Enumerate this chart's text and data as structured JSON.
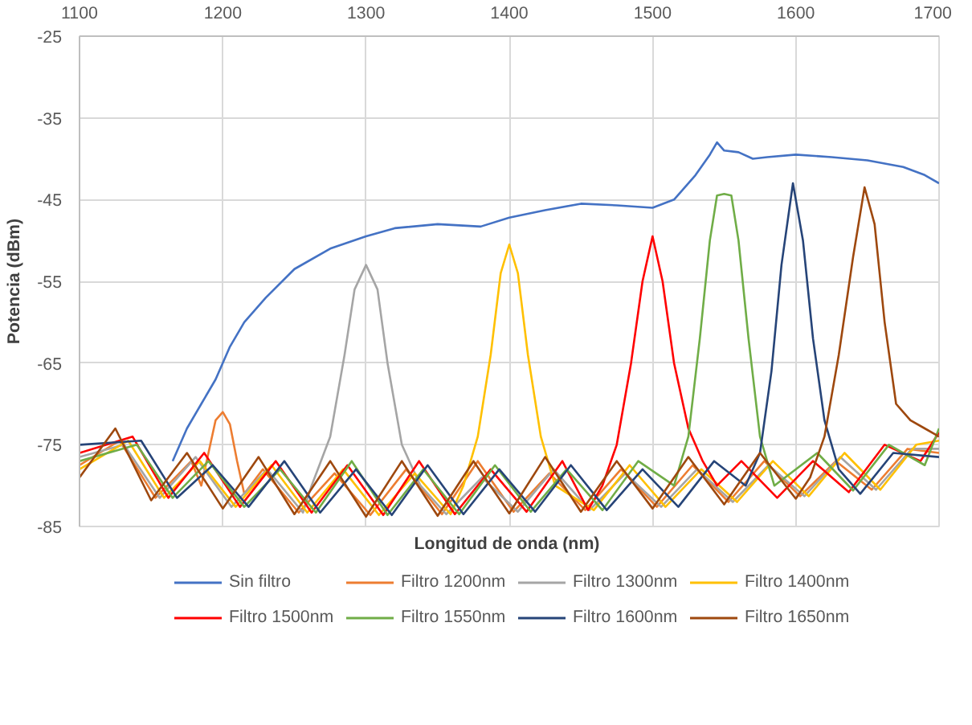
{
  "chart_data": {
    "type": "line",
    "xlabel": "Longitud  de onda (nm)",
    "ylabel": "Potencia (dBm)",
    "xlim": [
      1100,
      1700
    ],
    "xticks": [
      1100,
      1200,
      1300,
      1400,
      1500,
      1600,
      1700
    ],
    "ylim": [
      -85,
      -25
    ],
    "yticks": [
      -85,
      -75,
      -65,
      -55,
      -45,
      -35,
      -25
    ],
    "grid": true,
    "legend": "bottom",
    "marker": "none",
    "line_style": "solid",
    "series": [
      {
        "name": "Sin filtro",
        "color": "#4472c4",
        "x": [
          1165,
          1175,
          1185,
          1195,
          1205,
          1215,
          1230,
          1250,
          1275,
          1300,
          1320,
          1350,
          1380,
          1400,
          1425,
          1450,
          1475,
          1500,
          1515,
          1530,
          1540,
          1545,
          1550,
          1560,
          1570,
          1580,
          1600,
          1625,
          1650,
          1675,
          1690,
          1700
        ],
        "values": [
          -77,
          -73,
          -70,
          -67,
          -63,
          -60,
          -57,
          -53.5,
          -51,
          -49.5,
          -48.5,
          -48,
          -48.3,
          -47.2,
          -46.3,
          -45.5,
          -45.7,
          -46,
          -45,
          -42,
          -39.5,
          -38,
          -39,
          -39.2,
          -40,
          -39.8,
          -39.5,
          -39.8,
          -40.2,
          -41,
          -42,
          -43
        ]
      },
      {
        "name": "Filtro 1200nm",
        "color": "#ed7d31",
        "x": [
          1100,
          1128,
          1153,
          1178,
          1185,
          1190,
          1195,
          1200,
          1205,
          1210,
          1215,
          1228,
          1253,
          1278,
          1303,
          1328,
          1353,
          1378,
          1403,
          1428,
          1453,
          1478,
          1503,
          1528,
          1553,
          1578,
          1603,
          1628,
          1653,
          1678,
          1700
        ],
        "values": [
          -77.5,
          -74.5,
          -81.5,
          -77,
          -80,
          -76,
          -72,
          -71,
          -72.5,
          -77,
          -81,
          -78,
          -83.3,
          -78.5,
          -83.6,
          -78,
          -83.5,
          -77,
          -83.2,
          -78.5,
          -83,
          -78,
          -82.6,
          -77.5,
          -82,
          -77,
          -81.3,
          -77,
          -80.5,
          -75.5,
          -76
        ]
      },
      {
        "name": "Filtro 1300nm",
        "color": "#a5a5a5",
        "x": [
          1100,
          1131,
          1156,
          1181,
          1206,
          1231,
          1256,
          1262,
          1275,
          1285,
          1292,
          1300,
          1308,
          1315,
          1325,
          1338,
          1356,
          1381,
          1406,
          1431,
          1456,
          1481,
          1506,
          1531,
          1556,
          1581,
          1606,
          1631,
          1656,
          1681,
          1700
        ],
        "values": [
          -76.5,
          -75,
          -81.5,
          -76.5,
          -82.6,
          -78,
          -83.3,
          -80,
          -74,
          -64,
          -56,
          -53,
          -56,
          -65,
          -75,
          -80,
          -83.5,
          -79,
          -83.2,
          -78,
          -83,
          -78.5,
          -82.6,
          -78,
          -82,
          -77.5,
          -81.3,
          -76.5,
          -80.5,
          -75.5,
          -75.5
        ]
      },
      {
        "name": "Filtro 1400nm",
        "color": "#ffc000",
        "x": [
          1100,
          1134,
          1159,
          1184,
          1209,
          1234,
          1259,
          1284,
          1309,
          1334,
          1359,
          1368,
          1378,
          1387,
          1394,
          1400,
          1406,
          1413,
          1422,
          1432,
          1459,
          1484,
          1509,
          1534,
          1559,
          1584,
          1609,
          1634,
          1659,
          1684,
          1700
        ],
        "values": [
          -78,
          -74.5,
          -81.5,
          -77,
          -82.6,
          -77.5,
          -83.3,
          -78,
          -83.6,
          -78.5,
          -83.5,
          -80,
          -74,
          -64,
          -54,
          -50.5,
          -54,
          -64,
          -74,
          -80,
          -83,
          -77.5,
          -82.6,
          -78,
          -82,
          -77,
          -81.3,
          -76,
          -80.5,
          -75,
          -74.5
        ]
      },
      {
        "name": "Filtro 1500nm",
        "color": "#ff0000",
        "x": [
          1100,
          1137,
          1162,
          1187,
          1212,
          1237,
          1262,
          1287,
          1312,
          1337,
          1362,
          1387,
          1412,
          1437,
          1455,
          1465,
          1475,
          1485,
          1493,
          1500,
          1507,
          1515,
          1525,
          1535,
          1545,
          1562,
          1587,
          1612,
          1637,
          1662,
          1687,
          1700
        ],
        "values": [
          -76,
          -74,
          -81.5,
          -76,
          -82.6,
          -77,
          -83.3,
          -77.5,
          -83.6,
          -77,
          -83.5,
          -78,
          -83.2,
          -77,
          -83,
          -80,
          -75,
          -65,
          -55,
          -49.5,
          -55,
          -65,
          -73,
          -77,
          -80,
          -77,
          -81.5,
          -77,
          -80.8,
          -75,
          -77,
          -73.5
        ]
      },
      {
        "name": "Filtro 1550nm",
        "color": "#70ad47",
        "x": [
          1100,
          1140,
          1165,
          1190,
          1215,
          1240,
          1265,
          1290,
          1315,
          1340,
          1365,
          1390,
          1415,
          1440,
          1465,
          1490,
          1515,
          1525,
          1533,
          1540,
          1545,
          1550,
          1555,
          1560,
          1567,
          1575,
          1585,
          1615,
          1640,
          1665,
          1690,
          1700
        ],
        "values": [
          -77,
          -75,
          -81.5,
          -77,
          -82.6,
          -78,
          -83.3,
          -77,
          -83.6,
          -78,
          -83.5,
          -77.5,
          -83.2,
          -78,
          -83,
          -77,
          -80,
          -74,
          -62,
          -50,
          -44.5,
          -44.3,
          -44.5,
          -50,
          -62,
          -74,
          -80,
          -76,
          -80.6,
          -75,
          -77.5,
          -73
        ]
      },
      {
        "name": "Filtro 1600nm",
        "color": "#264478",
        "x": [
          1100,
          1143,
          1168,
          1193,
          1218,
          1243,
          1268,
          1293,
          1318,
          1343,
          1368,
          1393,
          1418,
          1443,
          1468,
          1493,
          1518,
          1543,
          1565,
          1575,
          1583,
          1590,
          1598,
          1605,
          1612,
          1620,
          1630,
          1645,
          1668,
          1700
        ],
        "values": [
          -75,
          -74.5,
          -81.5,
          -77.5,
          -82.6,
          -77,
          -83.3,
          -78,
          -83.6,
          -77.5,
          -83.5,
          -78,
          -83.2,
          -77.5,
          -83,
          -78,
          -82.6,
          -77,
          -80,
          -76,
          -66,
          -53,
          -43,
          -50,
          -62,
          -72,
          -78,
          -81,
          -76,
          -76.5
        ]
      },
      {
        "name": "Filtro 1650nm",
        "color": "#9e480e",
        "x": [
          1100,
          1125,
          1150,
          1175,
          1200,
          1225,
          1250,
          1275,
          1300,
          1325,
          1350,
          1375,
          1400,
          1425,
          1450,
          1475,
          1500,
          1525,
          1550,
          1575,
          1600,
          1610,
          1620,
          1630,
          1640,
          1648,
          1655,
          1662,
          1670,
          1680,
          1690,
          1700
        ],
        "values": [
          -79,
          -73,
          -81.8,
          -76,
          -82.8,
          -76.5,
          -83.5,
          -77,
          -83.8,
          -77,
          -83.7,
          -77,
          -83.4,
          -76.5,
          -83.2,
          -77,
          -82.8,
          -76.5,
          -82.3,
          -76,
          -81.6,
          -79,
          -74,
          -64,
          -52,
          -43.5,
          -48,
          -60,
          -70,
          -72,
          -73,
          -74
        ]
      }
    ]
  }
}
